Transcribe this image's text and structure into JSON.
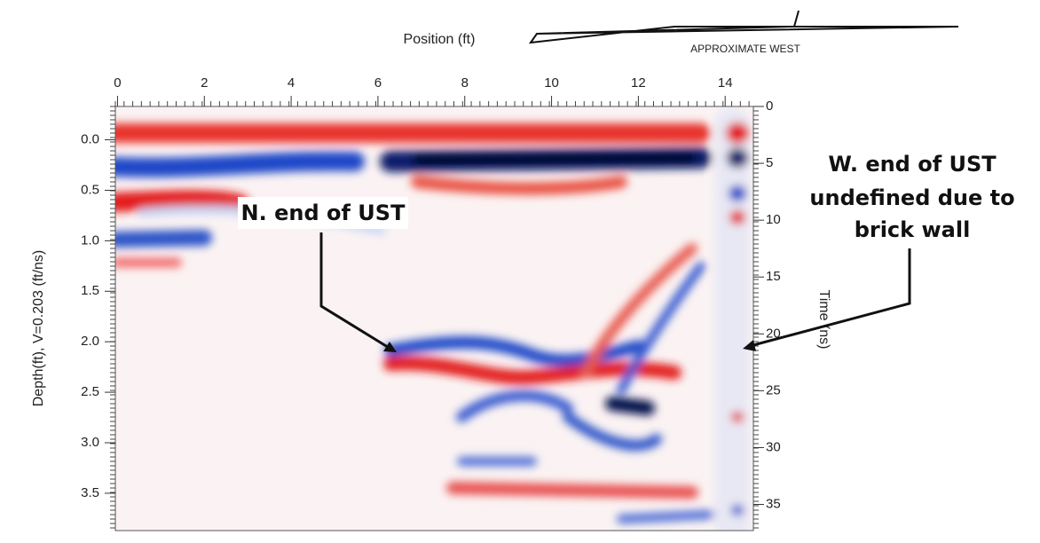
{
  "chart_data": {
    "type": "radargram",
    "xlabel": "Position (ft)",
    "ylabel": "Depth(ft), V=0.203 (ft/ns)",
    "y2label": "Time (ns)",
    "direction_label": "APPROXIMATE WEST",
    "annotations": [
      "N. end of UST",
      "W. end of UST",
      "undefined due to",
      "brick wall"
    ],
    "xlim": [
      -0.05,
      14.65
    ],
    "xticks": [
      0,
      2,
      4,
      6,
      8,
      10,
      12,
      14
    ],
    "ylim": [
      -0.33,
      3.87
    ],
    "yticks": [
      {
        "value": 0,
        "label": "0.0"
      },
      {
        "value": 0.5,
        "label": "0.5"
      },
      {
        "value": 1,
        "label": "1.0"
      },
      {
        "value": 1.5,
        "label": "1.5"
      },
      {
        "value": 2,
        "label": "2.0"
      },
      {
        "value": 2.5,
        "label": "2.5"
      },
      {
        "value": 3,
        "label": "3.0"
      },
      {
        "value": 3.5,
        "label": "3.5"
      }
    ],
    "y2lim": [
      0,
      37.3
    ],
    "y2ticks": [
      0,
      5,
      10,
      15,
      20,
      25,
      30,
      35
    ]
  }
}
